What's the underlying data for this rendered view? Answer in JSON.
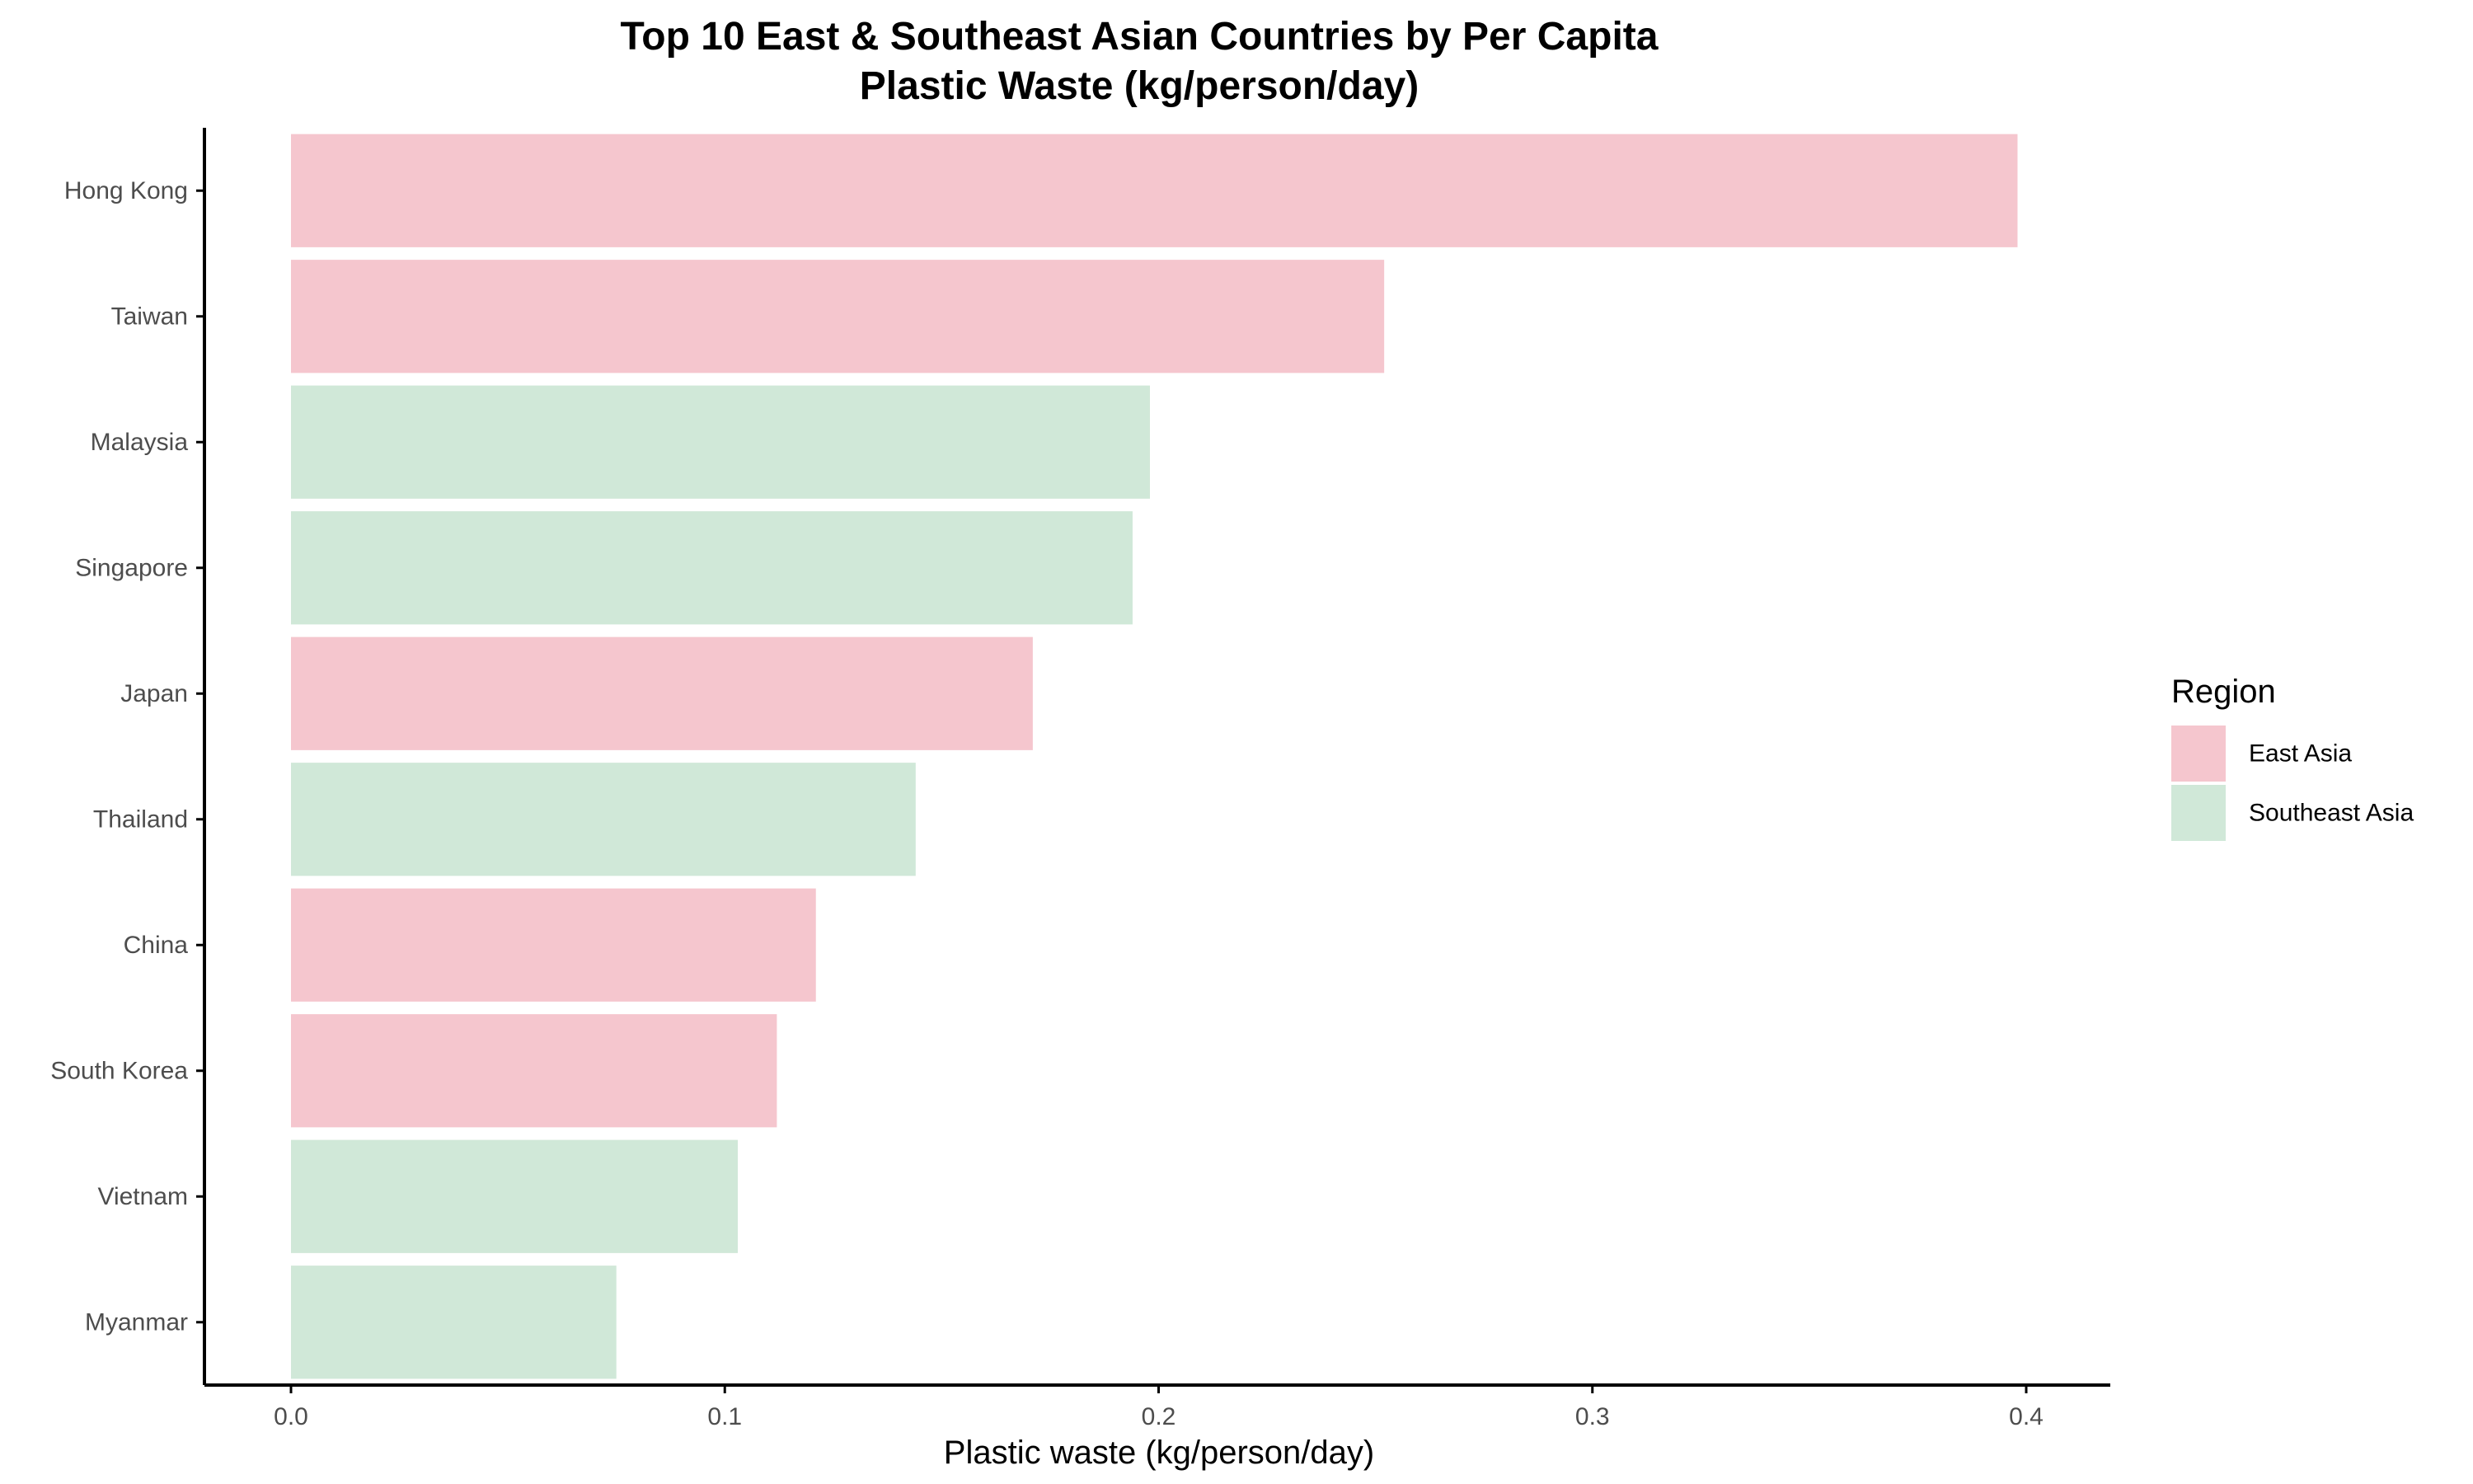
{
  "chart_data": {
    "type": "bar",
    "orientation": "horizontal",
    "title_lines": [
      "Top 10 East & Southeast Asian Countries by Per Capita",
      "Plastic Waste (kg/person/day)"
    ],
    "xlabel": "Plastic waste (kg/person/day)",
    "ylabel": "",
    "xlim": [
      0,
      0.4
    ],
    "x_ticks": [
      0.0,
      0.1,
      0.2,
      0.3,
      0.4
    ],
    "x_tick_labels": [
      "0.0",
      "0.1",
      "0.2",
      "0.3",
      "0.4"
    ],
    "categories": [
      "Hong Kong",
      "Taiwan",
      "Malaysia",
      "Singapore",
      "Japan",
      "Thailand",
      "China",
      "South Korea",
      "Vietnam",
      "Myanmar"
    ],
    "values": [
      0.398,
      0.252,
      0.198,
      0.194,
      0.171,
      0.144,
      0.121,
      0.112,
      0.103,
      0.075
    ],
    "regions": [
      "East Asia",
      "East Asia",
      "Southeast Asia",
      "Southeast Asia",
      "East Asia",
      "Southeast Asia",
      "East Asia",
      "East Asia",
      "Southeast Asia",
      "Southeast Asia"
    ],
    "grid": false,
    "legend": {
      "title": "Region",
      "placement": "right",
      "entries": [
        {
          "label": "East Asia",
          "color": "#F5C6CE"
        },
        {
          "label": "Southeast Asia",
          "color": "#D0E8D8"
        }
      ]
    }
  }
}
